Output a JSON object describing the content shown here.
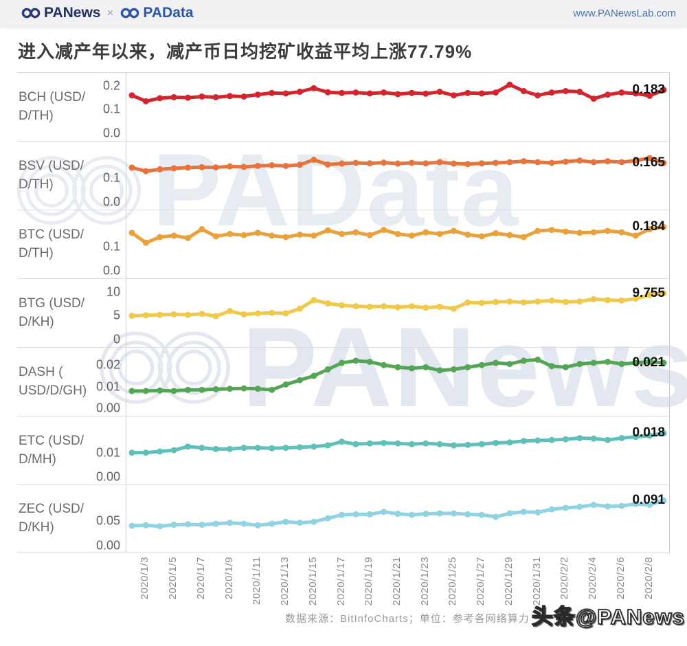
{
  "header": {
    "panews": "PANews",
    "separator": "×",
    "padata": "PAData",
    "url": "www.PANewsLab.com"
  },
  "title": "进入减产年以来，减产币日均挖矿收益平均上涨77.79%",
  "watermarks": {
    "padata": "PAData",
    "panews": "PANews"
  },
  "footer": {
    "source_note": "数据来源：BitInfoCharts；单位：参考各网络算力",
    "overlay_watermark": "头条@PANews"
  },
  "chart_data": {
    "type": "line",
    "layout": "small-multiples, 7 stacked rows, shared daily x-axis, grid off, point markers on",
    "x_frequency": "daily",
    "points_per_series": 39,
    "x_tick_labels": [
      "2020/1/3",
      "2020/1/5",
      "2020/1/7",
      "2020/1/9",
      "2020/1/11",
      "2020/1/13",
      "2020/1/15",
      "2020/1/17",
      "2020/1/19",
      "2020/1/21",
      "2020/1/23",
      "2020/1/25",
      "2020/1/27",
      "2020/1/29",
      "2020/1/31",
      "2020/2/2",
      "2020/2/4",
      "2020/2/6",
      "2020/2/8"
    ],
    "series": [
      {
        "name": "BCH (USD/D/TH)",
        "label_lines": [
          "BCH (USD/",
          "D/TH)"
        ],
        "color": "#d2252e",
        "end_value_label": "0.183",
        "y_ticks": [
          {
            "v": 0.2,
            "label": "0.2"
          },
          {
            "v": 0.1,
            "label": "0.1"
          },
          {
            "v": 0.0,
            "label": "0.0"
          }
        ],
        "y_scale_max": 0.22,
        "values": [
          0.16,
          0.135,
          0.148,
          0.152,
          0.15,
          0.155,
          0.152,
          0.157,
          0.155,
          0.163,
          0.17,
          0.168,
          0.175,
          0.19,
          0.173,
          0.17,
          0.172,
          0.168,
          0.172,
          0.165,
          0.17,
          0.167,
          0.175,
          0.16,
          0.17,
          0.168,
          0.172,
          0.205,
          0.178,
          0.16,
          0.172,
          0.178,
          0.175,
          0.146,
          0.163,
          0.172,
          0.168,
          0.158,
          0.183
        ]
      },
      {
        "name": "BSV (USD/D/TH)",
        "label_lines": [
          "BSV (USD/",
          "D/TH)"
        ],
        "color": "#e7743c",
        "end_value_label": "0.165",
        "y_ticks": [
          {
            "v": 0.1,
            "label": "0.1"
          },
          {
            "v": 0.0,
            "label": "0.0"
          }
        ],
        "y_scale_max": 0.22,
        "values": [
          0.145,
          0.13,
          0.138,
          0.142,
          0.145,
          0.147,
          0.146,
          0.15,
          0.148,
          0.152,
          0.155,
          0.152,
          0.157,
          0.178,
          0.158,
          0.162,
          0.165,
          0.163,
          0.166,
          0.162,
          0.165,
          0.163,
          0.168,
          0.162,
          0.16,
          0.163,
          0.165,
          0.168,
          0.172,
          0.168,
          0.165,
          0.17,
          0.175,
          0.168,
          0.172,
          0.168,
          0.175,
          0.185,
          0.165
        ]
      },
      {
        "name": "BTC (USD/D/TH)",
        "label_lines": [
          "BTC (USD/",
          "D/TH)"
        ],
        "color": "#e9a23b",
        "end_value_label": "0.184",
        "y_ticks": [
          {
            "v": 0.1,
            "label": "0.1"
          },
          {
            "v": 0.0,
            "label": "0.0"
          }
        ],
        "y_scale_max": 0.22,
        "values": [
          0.16,
          0.118,
          0.142,
          0.148,
          0.138,
          0.175,
          0.145,
          0.155,
          0.15,
          0.16,
          0.148,
          0.142,
          0.152,
          0.148,
          0.17,
          0.155,
          0.162,
          0.15,
          0.172,
          0.155,
          0.148,
          0.162,
          0.155,
          0.168,
          0.152,
          0.145,
          0.158,
          0.15,
          0.142,
          0.168,
          0.172,
          0.165,
          0.16,
          0.162,
          0.168,
          0.162,
          0.148,
          0.175,
          0.184
        ]
      },
      {
        "name": "BTG (USD/D/KH)",
        "label_lines": [
          "BTG (USD/",
          "D/KH)"
        ],
        "color": "#efc94c",
        "end_value_label": "9.755",
        "y_ticks": [
          {
            "v": 10,
            "label": "10"
          },
          {
            "v": 5,
            "label": "5"
          },
          {
            "v": 0,
            "label": "0"
          }
        ],
        "y_scale_max": 11,
        "values": [
          5.0,
          5.1,
          5.2,
          5.3,
          5.2,
          5.4,
          4.9,
          6.0,
          5.3,
          5.5,
          5.6,
          5.5,
          6.5,
          8.3,
          7.6,
          7.2,
          7.0,
          6.9,
          7.0,
          6.8,
          7.0,
          6.7,
          6.9,
          6.5,
          7.8,
          7.7,
          7.9,
          8.0,
          7.8,
          8.0,
          8.2,
          7.9,
          8.0,
          8.5,
          8.3,
          8.2,
          8.6,
          9.4,
          9.755
        ]
      },
      {
        "name": "DASH (USD/D/GH)",
        "label_lines": [
          "DASH (",
          "USD/D/GH)"
        ],
        "color": "#55a556",
        "end_value_label": "0.021",
        "y_ticks": [
          {
            "v": 0.02,
            "label": "0.02"
          },
          {
            "v": 0.01,
            "label": "0.01"
          },
          {
            "v": 0.0,
            "label": "0.00"
          }
        ],
        "y_scale_max": 0.0242,
        "values": [
          0.008,
          0.008,
          0.0082,
          0.008,
          0.0085,
          0.0085,
          0.0088,
          0.009,
          0.0092,
          0.009,
          0.0085,
          0.011,
          0.013,
          0.015,
          0.018,
          0.021,
          0.022,
          0.0215,
          0.02,
          0.019,
          0.0185,
          0.019,
          0.0175,
          0.018,
          0.019,
          0.02,
          0.021,
          0.0205,
          0.022,
          0.0225,
          0.0195,
          0.019,
          0.0205,
          0.021,
          0.0215,
          0.0205,
          0.021,
          0.0215,
          0.021
        ]
      },
      {
        "name": "ETC (USD/D/MH)",
        "label_lines": [
          "ETC (USD/",
          "D/MH)"
        ],
        "color": "#5fc0ba",
        "end_value_label": "0.018",
        "y_ticks": [
          {
            "v": 0.01,
            "label": "0.01"
          },
          {
            "v": 0.0,
            "label": "0.00"
          }
        ],
        "y_scale_max": 0.0215,
        "values": [
          0.01,
          0.01,
          0.0105,
          0.011,
          0.0125,
          0.012,
          0.0115,
          0.0115,
          0.012,
          0.012,
          0.0118,
          0.012,
          0.0122,
          0.0125,
          0.013,
          0.0145,
          0.0135,
          0.0138,
          0.014,
          0.0138,
          0.0135,
          0.0138,
          0.0135,
          0.013,
          0.0132,
          0.0135,
          0.014,
          0.0142,
          0.0148,
          0.015,
          0.0152,
          0.0155,
          0.016,
          0.0158,
          0.0152,
          0.016,
          0.0165,
          0.017,
          0.018
        ]
      },
      {
        "name": "ZEC (USD/D/KH)",
        "label_lines": [
          "ZEC (USD/",
          "D/KH)"
        ],
        "color": "#8fd2e2",
        "end_value_label": "0.091",
        "y_ticks": [
          {
            "v": 0.05,
            "label": "0.05"
          },
          {
            "v": 0.0,
            "label": "0.00"
          }
        ],
        "y_scale_max": 0.105,
        "values": [
          0.04,
          0.041,
          0.039,
          0.042,
          0.043,
          0.042,
          0.044,
          0.046,
          0.044,
          0.041,
          0.044,
          0.048,
          0.046,
          0.048,
          0.055,
          0.062,
          0.063,
          0.063,
          0.068,
          0.064,
          0.062,
          0.064,
          0.065,
          0.065,
          0.063,
          0.062,
          0.058,
          0.065,
          0.068,
          0.067,
          0.073,
          0.076,
          0.078,
          0.082,
          0.079,
          0.08,
          0.084,
          0.082,
          0.091
        ]
      }
    ]
  }
}
